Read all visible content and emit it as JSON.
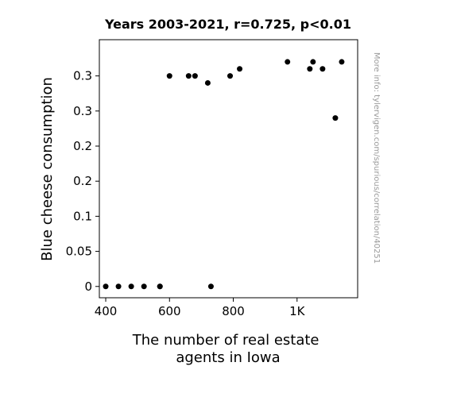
{
  "chart_data": {
    "type": "scatter",
    "title": "Years 2003-2021, r=0.725, p<0.01",
    "xlabel": [
      "The number of real estate",
      "agents in Iowa"
    ],
    "ylabel": "Blue cheese consumption",
    "xlim": [
      380,
      1190
    ],
    "ylim": [
      -0.0161,
      0.3516
    ],
    "x_ticks": [
      {
        "value": 400,
        "label": "400"
      },
      {
        "value": 600,
        "label": "600"
      },
      {
        "value": 800,
        "label": "800"
      },
      {
        "value": 1000,
        "label": "1K"
      }
    ],
    "y_ticks": [
      {
        "value": 0,
        "label": "0"
      },
      {
        "value": 0.05,
        "label": "0.05"
      },
      {
        "value": 0.1,
        "label": "0.1"
      },
      {
        "value": 0.15,
        "label": "0.2"
      },
      {
        "value": 0.2,
        "label": "0.2"
      },
      {
        "value": 0.25,
        "label": "0.3"
      },
      {
        "value": 0.3,
        "label": "0.3"
      }
    ],
    "grid": false,
    "point_color": "#000000",
    "points": [
      {
        "x": 400,
        "y": 0
      },
      {
        "x": 440,
        "y": 0
      },
      {
        "x": 480,
        "y": 0
      },
      {
        "x": 520,
        "y": 0
      },
      {
        "x": 570,
        "y": 0
      },
      {
        "x": 570,
        "y": 0
      },
      {
        "x": 730,
        "y": 0
      },
      {
        "x": 600,
        "y": 0.3
      },
      {
        "x": 660,
        "y": 0.3
      },
      {
        "x": 680,
        "y": 0.3
      },
      {
        "x": 720,
        "y": 0.29
      },
      {
        "x": 790,
        "y": 0.3
      },
      {
        "x": 820,
        "y": 0.31
      },
      {
        "x": 970,
        "y": 0.32
      },
      {
        "x": 1040,
        "y": 0.31
      },
      {
        "x": 1050,
        "y": 0.32
      },
      {
        "x": 1080,
        "y": 0.31
      },
      {
        "x": 1120,
        "y": 0.24
      },
      {
        "x": 1140,
        "y": 0.32
      }
    ]
  },
  "side_note": "More info: tylervigen.com/spurious/correlation/40251"
}
